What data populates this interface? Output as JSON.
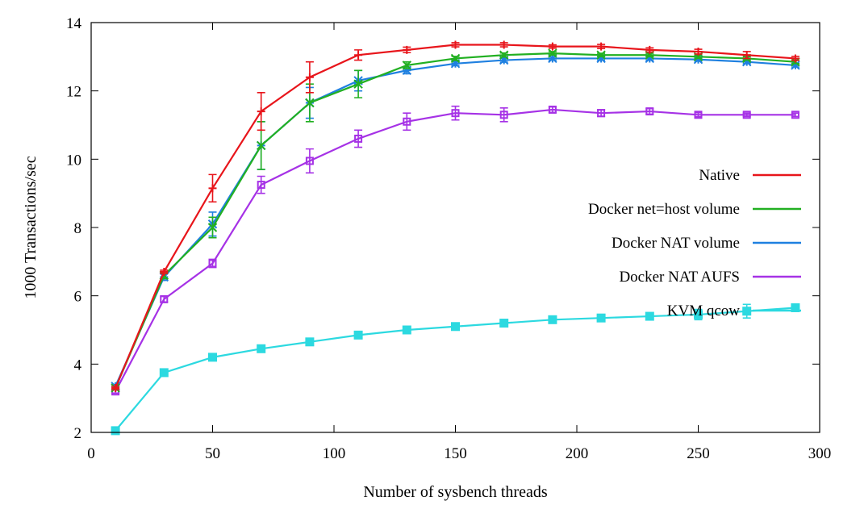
{
  "chart_data": {
    "type": "line",
    "title": "",
    "xlabel": "Number of sysbench threads",
    "ylabel": "1000 Transactions/sec",
    "xlim": [
      0,
      300
    ],
    "ylim": [
      2,
      14
    ],
    "xticks": [
      0,
      50,
      100,
      150,
      200,
      250,
      300
    ],
    "yticks": [
      2,
      4,
      6,
      8,
      10,
      12,
      14
    ],
    "grid": false,
    "legend": "right",
    "x": [
      10,
      30,
      50,
      70,
      90,
      110,
      130,
      150,
      170,
      190,
      210,
      230,
      250,
      270,
      290
    ],
    "series": [
      {
        "name": "Native",
        "color": "#e8151b",
        "marker": "plus",
        "values": [
          3.3,
          6.7,
          9.15,
          11.4,
          12.4,
          13.05,
          13.2,
          13.35,
          13.35,
          13.3,
          13.3,
          13.2,
          13.15,
          13.05,
          12.95
        ],
        "errors": [
          0.05,
          0.05,
          0.4,
          0.55,
          0.45,
          0.15,
          0.08,
          0.06,
          0.06,
          0.05,
          0.06,
          0.06,
          0.07,
          0.1,
          0.06
        ]
      },
      {
        "name": "Docker net=host volume",
        "color": "#22b022",
        "marker": "cross",
        "values": [
          3.3,
          6.6,
          8.0,
          10.4,
          11.65,
          12.2,
          12.75,
          12.95,
          13.05,
          13.1,
          13.05,
          13.05,
          13.0,
          12.95,
          12.85
        ],
        "errors": [
          0.05,
          0.1,
          0.3,
          0.7,
          0.55,
          0.4,
          0.1,
          0.06,
          0.06,
          0.05,
          0.05,
          0.05,
          0.05,
          0.05,
          0.05
        ]
      },
      {
        "name": "Docker NAT volume",
        "color": "#1f80e0",
        "marker": "star",
        "values": [
          3.35,
          6.55,
          8.1,
          10.4,
          11.65,
          12.3,
          12.6,
          12.8,
          12.9,
          12.95,
          12.95,
          12.95,
          12.92,
          12.85,
          12.75
        ],
        "errors": [
          0.05,
          0.1,
          0.35,
          0.7,
          0.45,
          0.3,
          0.1,
          0.06,
          0.06,
          0.05,
          0.05,
          0.05,
          0.05,
          0.05,
          0.05
        ]
      },
      {
        "name": "Docker NAT AUFS",
        "color": "#a632e6",
        "marker": "square-open",
        "values": [
          3.2,
          5.9,
          6.95,
          9.25,
          9.95,
          10.6,
          11.1,
          11.35,
          11.3,
          11.45,
          11.35,
          11.4,
          11.3,
          11.3,
          11.3
        ],
        "errors": [
          0.05,
          0.08,
          0.12,
          0.25,
          0.35,
          0.25,
          0.25,
          0.2,
          0.2,
          0.08,
          0.1,
          0.08,
          0.06,
          0.05,
          0.05
        ]
      },
      {
        "name": "KVM qcow",
        "color": "#2cd9e0",
        "marker": "square-filled",
        "values": [
          2.05,
          3.75,
          4.2,
          4.45,
          4.65,
          4.85,
          5.0,
          5.1,
          5.2,
          5.3,
          5.35,
          5.4,
          5.45,
          5.55,
          5.65
        ],
        "errors": [
          0.03,
          0.05,
          0.05,
          0.05,
          0.05,
          0.05,
          0.05,
          0.05,
          0.05,
          0.05,
          0.1,
          0.1,
          0.15,
          0.2,
          0.1
        ]
      }
    ]
  }
}
